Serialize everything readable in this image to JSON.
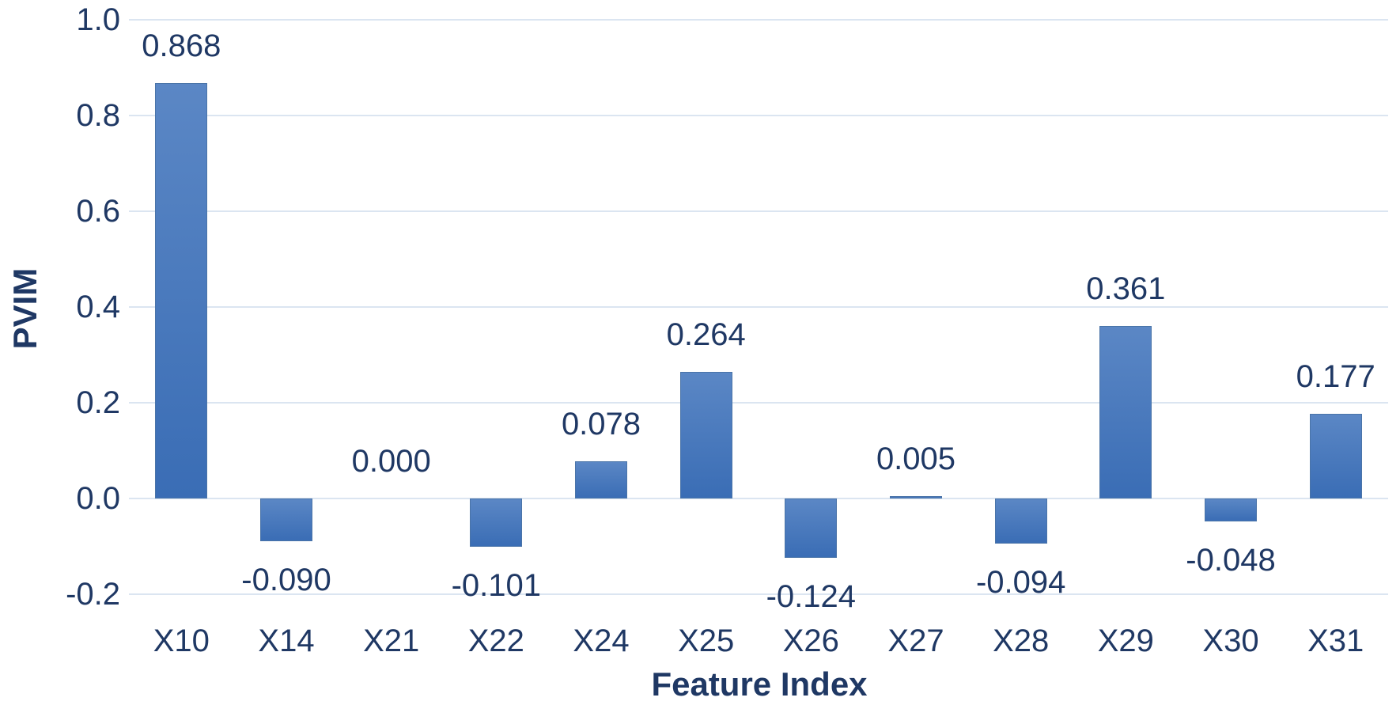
{
  "chart_data": {
    "type": "bar",
    "xlabel": "Feature Index",
    "ylabel": "PVIM",
    "categories": [
      "X10",
      "X14",
      "X21",
      "X22",
      "X24",
      "X25",
      "X26",
      "X27",
      "X28",
      "X29",
      "X30",
      "X31"
    ],
    "values": [
      0.868,
      -0.09,
      0.0,
      -0.101,
      0.078,
      0.264,
      -0.124,
      0.005,
      -0.094,
      0.361,
      -0.048,
      0.177
    ],
    "value_labels": [
      "0.868",
      "-0.090",
      "0.000",
      "-0.101",
      "0.078",
      "0.264",
      "-0.124",
      "0.005",
      "-0.094",
      "0.361",
      "-0.048",
      "0.177"
    ],
    "ylim": [
      -0.2,
      1.0
    ],
    "ytick_labels": [
      "1.0",
      "0.8",
      "0.6",
      "0.4",
      "0.2",
      "0.0",
      "-0.2"
    ],
    "grid": true,
    "legend": false,
    "colors": {
      "bar_gradient_top": "#5b87c5",
      "bar_gradient_bottom": "#3a6db5",
      "bar_border": "#4a74a8",
      "gridline": "#dbe5f1",
      "text": "#1f3864"
    }
  }
}
